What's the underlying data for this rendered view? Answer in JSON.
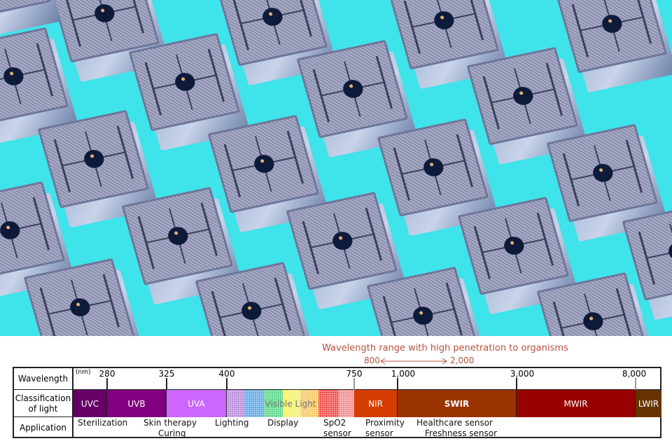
{
  "photo": {
    "background_color": "#3fe3ea",
    "subject": "chip-array"
  },
  "penetration": {
    "title": "Wavelength range with high penetration to organisms",
    "from": "800",
    "to": "2,000",
    "color": "#b5533c"
  },
  "table": {
    "row_labels": {
      "wavelength": "Wavelength",
      "classification": "Classification of light",
      "application": "Application"
    },
    "unit": "(nm)",
    "ticks": [
      "280",
      "325",
      "400",
      "750",
      "1,000",
      "3,000",
      "8,000"
    ],
    "bands": [
      {
        "label": "UVC",
        "color": "#660066"
      },
      {
        "label": "UVB",
        "color": "#800080"
      },
      {
        "label": "UVA",
        "color": "#cc66ff"
      },
      {
        "label": "Visible Light",
        "color": "spectrum"
      },
      {
        "label": "NIR",
        "color": "#d43c00"
      },
      {
        "label": "SWIR",
        "color": "#993300"
      },
      {
        "label": "MWIR",
        "color": "#990000"
      },
      {
        "label": "LWIR",
        "color": "#663300"
      }
    ],
    "applications": [
      "Sterilization",
      "Skin therapy",
      "Curing",
      "Lighting",
      "Display",
      "SpO2",
      "sensor",
      "Proximity",
      "sensor",
      "Healthcare sensor",
      "Freshness sensor"
    ]
  }
}
